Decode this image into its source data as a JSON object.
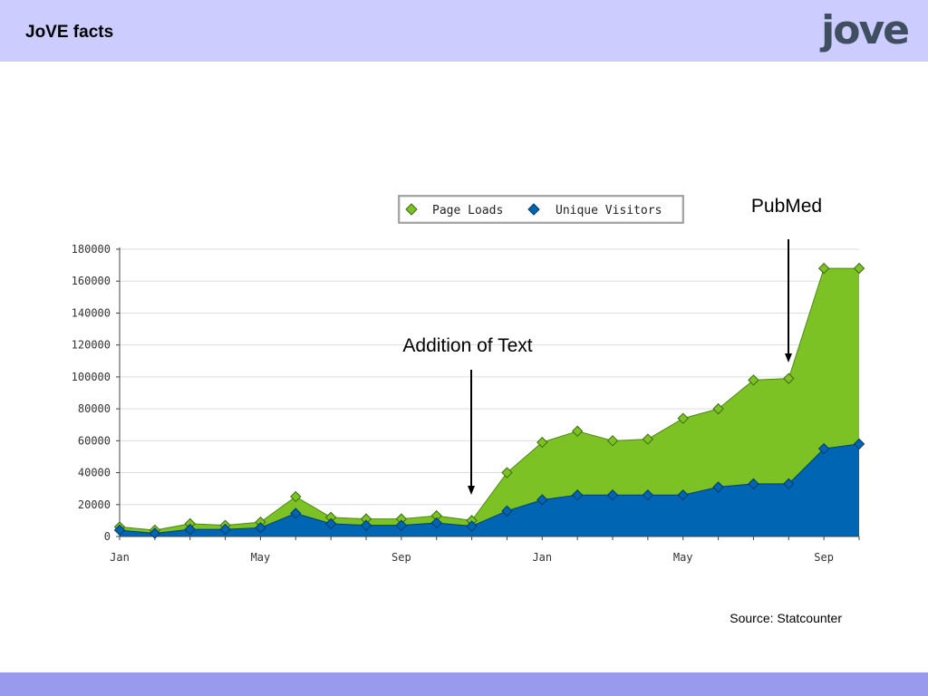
{
  "header": {
    "title": "JoVE facts",
    "logo_text": "jove"
  },
  "source": "Source: Statcounter",
  "colors": {
    "header_bg": "#ccccff",
    "footer_bg": "#9999ee",
    "page_loads": "#7dc225",
    "unique_visitors": "#0066b3"
  },
  "chart_data": {
    "type": "area",
    "title": "",
    "xlabel": "",
    "ylabel": "",
    "ylim": [
      0,
      180000
    ],
    "yticks": [
      "0",
      "20000",
      "40000",
      "60000",
      "80000",
      "100000",
      "120000",
      "140000",
      "160000",
      "180000"
    ],
    "xticks": [
      "Jan",
      "May",
      "Sep",
      "Jan",
      "May",
      "Sep"
    ],
    "grid": true,
    "legend_position": "top-right",
    "series": [
      {
        "name": "Page Loads",
        "values": [
          6000,
          4000,
          8000,
          7000,
          9000,
          25000,
          12000,
          11000,
          11000,
          13000,
          10000,
          40000,
          59000,
          66000,
          60000,
          61000,
          74000,
          80000,
          98000,
          99000,
          168000,
          168000
        ]
      },
      {
        "name": "Unique Visitors",
        "values": [
          4000,
          2000,
          4500,
          4500,
          5500,
          14500,
          8000,
          7000,
          7000,
          8500,
          6500,
          16000,
          23000,
          26000,
          26000,
          26000,
          26000,
          31000,
          33000,
          33000,
          55000,
          58000
        ]
      }
    ],
    "annotations": [
      {
        "text": "Addition of Text"
      },
      {
        "text": "PubMed"
      }
    ]
  }
}
